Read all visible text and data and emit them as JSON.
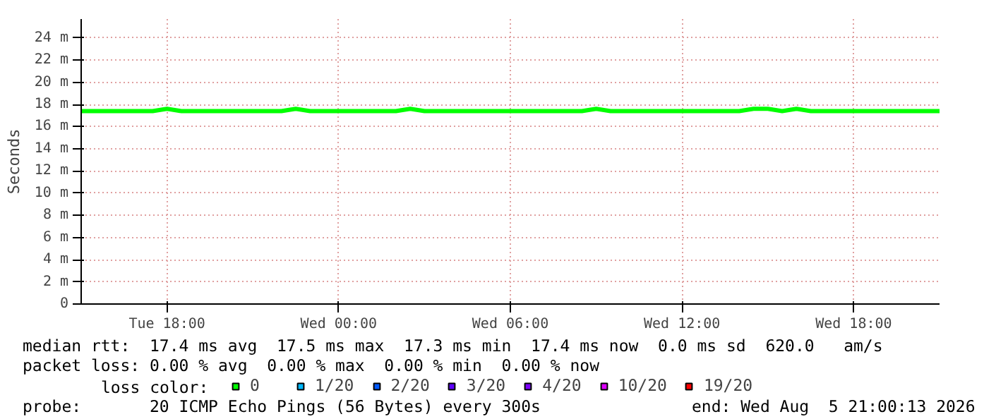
{
  "chart_data": {
    "type": "line",
    "ylabel": "Seconds",
    "legend_title": "loss color:",
    "legend": "bottom",
    "grid": true,
    "marker": "none",
    "line_style": "solid",
    "x": [
      "2026-08-04T15:00",
      "2026-08-04T15:30",
      "2026-08-04T16:00",
      "2026-08-04T16:30",
      "2026-08-04T17:00",
      "2026-08-04T17:30",
      "2026-08-04T18:00",
      "2026-08-04T18:30",
      "2026-08-04T19:00",
      "2026-08-04T19:30",
      "2026-08-04T20:00",
      "2026-08-04T20:30",
      "2026-08-04T21:00",
      "2026-08-04T21:30",
      "2026-08-04T22:00",
      "2026-08-04T22:30",
      "2026-08-04T23:00",
      "2026-08-04T23:30",
      "2026-08-05T00:00",
      "2026-08-05T00:30",
      "2026-08-05T01:00",
      "2026-08-05T01:30",
      "2026-08-05T02:00",
      "2026-08-05T02:30",
      "2026-08-05T03:00",
      "2026-08-05T03:30",
      "2026-08-05T04:00",
      "2026-08-05T04:30",
      "2026-08-05T05:00",
      "2026-08-05T05:30",
      "2026-08-05T06:00",
      "2026-08-05T06:30",
      "2026-08-05T07:00",
      "2026-08-05T07:30",
      "2026-08-05T08:00",
      "2026-08-05T08:30",
      "2026-08-05T09:00",
      "2026-08-05T09:30",
      "2026-08-05T10:00",
      "2026-08-05T10:30",
      "2026-08-05T11:00",
      "2026-08-05T11:30",
      "2026-08-05T12:00",
      "2026-08-05T12:30",
      "2026-08-05T13:00",
      "2026-08-05T13:30",
      "2026-08-05T14:00",
      "2026-08-05T14:30",
      "2026-08-05T15:00",
      "2026-08-05T15:30",
      "2026-08-05T16:00",
      "2026-08-05T16:30",
      "2026-08-05T17:00",
      "2026-08-05T17:30",
      "2026-08-05T18:00",
      "2026-08-05T18:30",
      "2026-08-05T19:00",
      "2026-08-05T19:30",
      "2026-08-05T20:00",
      "2026-08-05T20:30",
      "2026-08-05T21:00"
    ],
    "xlim": [
      "2026-08-04T15:00",
      "2026-08-05T21:00"
    ],
    "xticks": [
      {
        "value": "2026-08-04T18:00",
        "label": "Tue 18:00"
      },
      {
        "value": "2026-08-05T00:00",
        "label": "Wed 00:00"
      },
      {
        "value": "2026-08-05T06:00",
        "label": "Wed 06:00"
      },
      {
        "value": "2026-08-05T12:00",
        "label": "Wed 12:00"
      },
      {
        "value": "2026-08-05T18:00",
        "label": "Wed 18:00"
      }
    ],
    "ylim": [
      0,
      25.7
    ],
    "yticks": [
      {
        "value": 0,
        "label": "0"
      },
      {
        "value": 2,
        "label": "2 m"
      },
      {
        "value": 4,
        "label": "4 m"
      },
      {
        "value": 6,
        "label": "6 m"
      },
      {
        "value": 8,
        "label": "8 m"
      },
      {
        "value": 10,
        "label": "10 m"
      },
      {
        "value": 12,
        "label": "12 m"
      },
      {
        "value": 14,
        "label": "14 m"
      },
      {
        "value": 16,
        "label": "16 m"
      },
      {
        "value": 18,
        "label": "18 m"
      },
      {
        "value": 20,
        "label": "20 m"
      },
      {
        "value": 22,
        "label": "22 m"
      },
      {
        "value": 24,
        "label": "24 m"
      }
    ],
    "series": [
      {
        "name": "0",
        "color": "#00ff00",
        "values": [
          17.4,
          17.4,
          17.4,
          17.4,
          17.4,
          17.4,
          17.6,
          17.4,
          17.4,
          17.4,
          17.4,
          17.4,
          17.4,
          17.4,
          17.4,
          17.6,
          17.4,
          17.4,
          17.4,
          17.4,
          17.4,
          17.4,
          17.4,
          17.6,
          17.4,
          17.4,
          17.4,
          17.4,
          17.4,
          17.4,
          17.4,
          17.4,
          17.4,
          17.4,
          17.4,
          17.4,
          17.6,
          17.4,
          17.4,
          17.4,
          17.4,
          17.4,
          17.4,
          17.4,
          17.4,
          17.4,
          17.4,
          17.6,
          17.6,
          17.4,
          17.6,
          17.4,
          17.4,
          17.4,
          17.4,
          17.4,
          17.4,
          17.4,
          17.4,
          17.4,
          17.4
        ]
      },
      {
        "name": "1/20",
        "color": "#00b8ff",
        "values": [
          null,
          null,
          null,
          null,
          null,
          null,
          null,
          null,
          null,
          null,
          null,
          null,
          null,
          null,
          null,
          null,
          null,
          null,
          null,
          null,
          null,
          null,
          null,
          null,
          null,
          null,
          null,
          null,
          null,
          null,
          null,
          null,
          null,
          null,
          null,
          null,
          null,
          null,
          null,
          null,
          null,
          null,
          null,
          null,
          null,
          null,
          null,
          null,
          null,
          null,
          null,
          null,
          null,
          null,
          null,
          null,
          null,
          null,
          null,
          null,
          null
        ]
      },
      {
        "name": "2/20",
        "color": "#0059ff",
        "values": [
          null,
          null,
          null,
          null,
          null,
          null,
          null,
          null,
          null,
          null,
          null,
          null,
          null,
          null,
          null,
          null,
          null,
          null,
          null,
          null,
          null,
          null,
          null,
          null,
          null,
          null,
          null,
          null,
          null,
          null,
          null,
          null,
          null,
          null,
          null,
          null,
          null,
          null,
          null,
          null,
          null,
          null,
          null,
          null,
          null,
          null,
          null,
          null,
          null,
          null,
          null,
          null,
          null,
          null,
          null,
          null,
          null,
          null,
          null,
          null,
          null
        ]
      },
      {
        "name": "3/20",
        "color": "#5e00ff",
        "values": [
          null,
          null,
          null,
          null,
          null,
          null,
          null,
          null,
          null,
          null,
          null,
          null,
          null,
          null,
          null,
          null,
          null,
          null,
          null,
          null,
          null,
          null,
          null,
          null,
          null,
          null,
          null,
          null,
          null,
          null,
          null,
          null,
          null,
          null,
          null,
          null,
          null,
          null,
          null,
          null,
          null,
          null,
          null,
          null,
          null,
          null,
          null,
          null,
          null,
          null,
          null,
          null,
          null,
          null,
          null,
          null,
          null,
          null,
          null,
          null,
          null
        ]
      },
      {
        "name": "4/20",
        "color": "#7e00ff",
        "values": [
          null,
          null,
          null,
          null,
          null,
          null,
          null,
          null,
          null,
          null,
          null,
          null,
          null,
          null,
          null,
          null,
          null,
          null,
          null,
          null,
          null,
          null,
          null,
          null,
          null,
          null,
          null,
          null,
          null,
          null,
          null,
          null,
          null,
          null,
          null,
          null,
          null,
          null,
          null,
          null,
          null,
          null,
          null,
          null,
          null,
          null,
          null,
          null,
          null,
          null,
          null,
          null,
          null,
          null,
          null,
          null,
          null,
          null,
          null,
          null,
          null
        ]
      },
      {
        "name": "10/20",
        "color": "#dd00ff",
        "values": [
          null,
          null,
          null,
          null,
          null,
          null,
          null,
          null,
          null,
          null,
          null,
          null,
          null,
          null,
          null,
          null,
          null,
          null,
          null,
          null,
          null,
          null,
          null,
          null,
          null,
          null,
          null,
          null,
          null,
          null,
          null,
          null,
          null,
          null,
          null,
          null,
          null,
          null,
          null,
          null,
          null,
          null,
          null,
          null,
          null,
          null,
          null,
          null,
          null,
          null,
          null,
          null,
          null,
          null,
          null,
          null,
          null,
          null,
          null,
          null,
          null
        ]
      },
      {
        "name": "19/20",
        "color": "#ff0000",
        "values": [
          null,
          null,
          null,
          null,
          null,
          null,
          null,
          null,
          null,
          null,
          null,
          null,
          null,
          null,
          null,
          null,
          null,
          null,
          null,
          null,
          null,
          null,
          null,
          null,
          null,
          null,
          null,
          null,
          null,
          null,
          null,
          null,
          null,
          null,
          null,
          null,
          null,
          null,
          null,
          null,
          null,
          null,
          null,
          null,
          null,
          null,
          null,
          null,
          null,
          null,
          null,
          null,
          null,
          null,
          null,
          null,
          null,
          null,
          null,
          null,
          null
        ]
      }
    ],
    "annotations": [
      "median rtt:  17.4 ms avg  17.5 ms max  17.3 ms min  17.4 ms now  0.0 ms sd  620.0   am/s",
      "packet loss: 0.00 % avg  0.00 % max  0.00 % min  0.00 % now",
      "probe:       20 ICMP Echo Pings (56 Bytes) every 300s",
      "end: Wed Aug  5 21:00:13 2026"
    ]
  }
}
